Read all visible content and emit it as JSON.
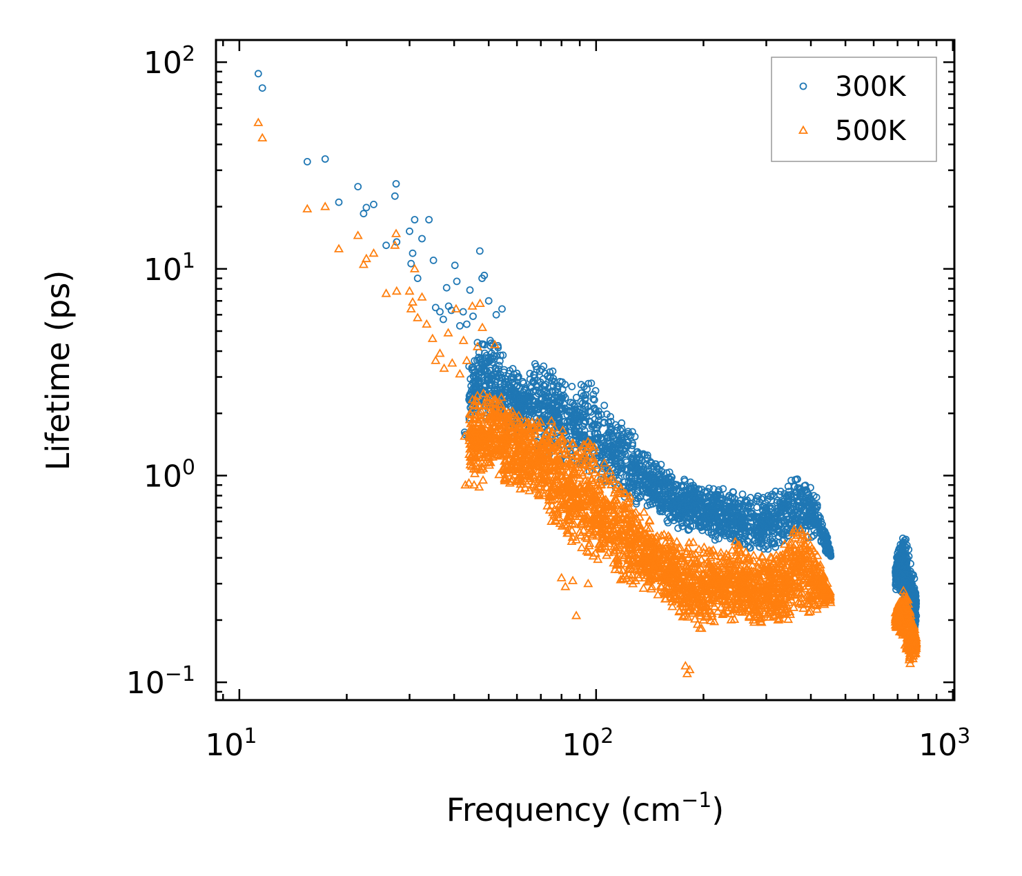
{
  "chart_data": {
    "type": "scatter",
    "title": "",
    "xlabel": "Frequency (cm",
    "xlabel_sup": "−1",
    "xlabel_suffix": ")",
    "ylabel": "Lifetime (ps)",
    "xscale": "log",
    "yscale": "log",
    "xlim": [
      8.6,
      1010
    ],
    "ylim": [
      0.082,
      128
    ],
    "x_ticks": [
      {
        "value": 10,
        "base": "10",
        "exp": "1"
      },
      {
        "value": 100,
        "base": "10",
        "exp": "2"
      },
      {
        "value": 1000,
        "base": "10",
        "exp": "3"
      }
    ],
    "y_ticks": [
      {
        "value": 0.1,
        "base": "10",
        "exp": "−1"
      },
      {
        "value": 1,
        "base": "10",
        "exp": "0"
      },
      {
        "value": 10,
        "base": "10",
        "exp": "1"
      },
      {
        "value": 100,
        "base": "10",
        "exp": "2"
      }
    ],
    "legend_position": "top-right",
    "series": [
      {
        "name": "300K",
        "marker": "circle",
        "color": "#1f77b4",
        "points": [
          [
            11.3,
            88
          ],
          [
            11.6,
            75
          ],
          [
            15.5,
            33
          ],
          [
            17.4,
            34
          ],
          [
            19.0,
            21
          ],
          [
            21.5,
            25
          ],
          [
            22.3,
            18.5
          ],
          [
            22.7,
            19.8
          ],
          [
            23.8,
            20.5
          ],
          [
            25.8,
            13
          ],
          [
            27.3,
            22.5
          ],
          [
            27.5,
            25.8
          ],
          [
            27.6,
            13.5
          ],
          [
            30.0,
            15.2
          ],
          [
            30.3,
            10.6
          ],
          [
            30.6,
            11.9
          ],
          [
            31.0,
            17.3
          ],
          [
            31.6,
            9.0
          ],
          [
            32.5,
            14.0
          ],
          [
            34.0,
            17.3
          ],
          [
            35.0,
            11.0
          ],
          [
            35.5,
            6.5
          ],
          [
            36.5,
            6.2
          ],
          [
            37.3,
            5.7
          ],
          [
            38.1,
            8.1
          ],
          [
            38.6,
            6.6
          ],
          [
            39.3,
            6.3
          ],
          [
            40.2,
            10.4
          ],
          [
            40.7,
            8.7
          ],
          [
            41.5,
            5.3
          ],
          [
            42.4,
            6.2
          ],
          [
            43.4,
            5.4
          ],
          [
            44.3,
            7.9
          ],
          [
            45.2,
            5.9
          ],
          [
            46.5,
            4.4
          ],
          [
            47.2,
            12.2
          ],
          [
            47.9,
            9.0
          ],
          [
            48.6,
            9.3
          ],
          [
            50.0,
            7.0
          ],
          [
            50.5,
            4.5
          ],
          [
            52.5,
            6.0
          ],
          [
            54.5,
            6.4
          ],
          [
            43.0,
            1.58
          ],
          [
            43.8,
            1.52
          ],
          [
            42.8,
            1.62
          ]
        ],
        "bands": [
          {
            "x": [
              44,
              46,
              48,
              52,
              56,
              62,
              70,
              76,
              82,
              88,
              95,
              102,
              110,
              118,
              130,
              142,
              155,
              170,
              185,
              200,
              220,
              245,
              275,
              305,
              335,
              360,
              380,
              400,
              420,
              440,
              455
            ],
            "upper": [
              3.5,
              4.0,
              4.8,
              4.6,
              3.7,
              3.1,
              3.8,
              3.5,
              3.0,
              2.6,
              3.2,
              2.5,
              2.1,
              1.8,
              1.6,
              1.3,
              1.1,
              0.95,
              0.98,
              0.9,
              0.88,
              0.85,
              0.78,
              0.84,
              0.9,
              1.12,
              0.95,
              0.9,
              0.8,
              0.55,
              0.42
            ],
            "lower": [
              1.7,
              1.8,
              1.9,
              1.7,
              1.6,
              1.5,
              1.3,
              1.2,
              1.1,
              1.0,
              0.95,
              0.9,
              0.85,
              0.8,
              0.72,
              0.65,
              0.6,
              0.55,
              0.52,
              0.5,
              0.48,
              0.46,
              0.44,
              0.43,
              0.45,
              0.48,
              0.5,
              0.48,
              0.46,
              0.42,
              0.4
            ],
            "count": 2200
          },
          {
            "x": [
              690,
              700,
              710,
              720,
              730,
              740,
              750,
              760,
              770,
              780,
              790
            ],
            "upper": [
              0.4,
              0.45,
              0.48,
              0.5,
              0.52,
              0.5,
              0.46,
              0.4,
              0.35,
              0.32,
              0.3
            ],
            "lower": [
              0.26,
              0.28,
              0.28,
              0.27,
              0.25,
              0.23,
              0.2,
              0.18,
              0.16,
              0.17,
              0.19
            ],
            "count": 380
          }
        ]
      },
      {
        "name": "500K",
        "marker": "triangle",
        "color": "#ff7f0e",
        "points": [
          [
            11.3,
            51
          ],
          [
            11.6,
            43
          ],
          [
            15.5,
            19.5
          ],
          [
            17.4,
            20
          ],
          [
            19.0,
            12.5
          ],
          [
            21.5,
            14.5
          ],
          [
            22.3,
            10.5
          ],
          [
            22.7,
            11.2
          ],
          [
            23.8,
            11.9
          ],
          [
            25.8,
            7.6
          ],
          [
            27.3,
            13.0
          ],
          [
            27.5,
            14.8
          ],
          [
            27.6,
            7.8
          ],
          [
            30.0,
            7.8
          ],
          [
            30.3,
            6.4
          ],
          [
            30.6,
            6.9
          ],
          [
            31.0,
            10.0
          ],
          [
            31.6,
            5.8
          ],
          [
            32.5,
            7.3
          ],
          [
            33.5,
            5.4
          ],
          [
            34.8,
            4.6
          ],
          [
            35.5,
            3.6
          ],
          [
            36.5,
            3.9
          ],
          [
            37.5,
            3.3
          ],
          [
            38.5,
            4.9
          ],
          [
            39.5,
            3.5
          ],
          [
            40.5,
            6.4
          ],
          [
            41.5,
            3.1
          ],
          [
            42.5,
            4.5
          ],
          [
            43.4,
            3.6
          ],
          [
            45.0,
            6.6
          ],
          [
            46.5,
            4.2
          ],
          [
            47.3,
            6.8
          ],
          [
            48.0,
            5.2
          ],
          [
            52.0,
            4.3
          ],
          [
            43.0,
            0.9
          ],
          [
            44.0,
            0.92
          ],
          [
            45.5,
            0.9
          ],
          [
            47.0,
            0.88
          ],
          [
            48.2,
            0.95
          ],
          [
            44.8,
            1.55
          ],
          [
            42.8,
            1.55
          ],
          [
            75.0,
            0.6
          ],
          [
            80.0,
            0.32
          ],
          [
            82.0,
            0.29
          ],
          [
            86.0,
            0.31
          ],
          [
            88.0,
            0.21
          ],
          [
            95.0,
            0.3
          ],
          [
            180,
            0.11
          ],
          [
            178,
            0.12
          ],
          [
            183,
            0.115
          ]
        ],
        "bands": [
          {
            "x": [
              44,
              46,
              48,
              52,
              56,
              62,
              70,
              76,
              82,
              88,
              95,
              102,
              110,
              118,
              130,
              142,
              155,
              170,
              185,
              200,
              220,
              245,
              275,
              305,
              335,
              360,
              380,
              400,
              420,
              440,
              455
            ],
            "upper": [
              2.2,
              2.5,
              2.6,
              2.6,
              2.3,
              2.0,
              2.1,
              1.9,
              1.6,
              1.5,
              1.6,
              1.3,
              1.1,
              0.9,
              0.75,
              0.62,
              0.55,
              0.5,
              0.48,
              0.45,
              0.46,
              0.48,
              0.42,
              0.4,
              0.46,
              0.6,
              0.58,
              0.5,
              0.42,
              0.33,
              0.28
            ],
            "lower": [
              0.95,
              1.0,
              1.0,
              0.95,
              0.9,
              0.82,
              0.72,
              0.6,
              0.5,
              0.42,
              0.38,
              0.35,
              0.32,
              0.3,
              0.28,
              0.26,
              0.24,
              0.21,
              0.17,
              0.18,
              0.2,
              0.2,
              0.19,
              0.19,
              0.19,
              0.2,
              0.21,
              0.22,
              0.22,
              0.23,
              0.24
            ],
            "count": 2600
          },
          {
            "x": [
              690,
              700,
              710,
              720,
              730,
              740,
              750,
              760,
              770,
              780,
              790
            ],
            "upper": [
              0.22,
              0.24,
              0.26,
              0.28,
              0.3,
              0.28,
              0.26,
              0.22,
              0.2,
              0.19,
              0.17
            ],
            "lower": [
              0.18,
              0.18,
              0.17,
              0.16,
              0.15,
              0.14,
              0.13,
              0.12,
              0.12,
              0.13,
              0.14
            ],
            "count": 330
          }
        ]
      }
    ]
  }
}
